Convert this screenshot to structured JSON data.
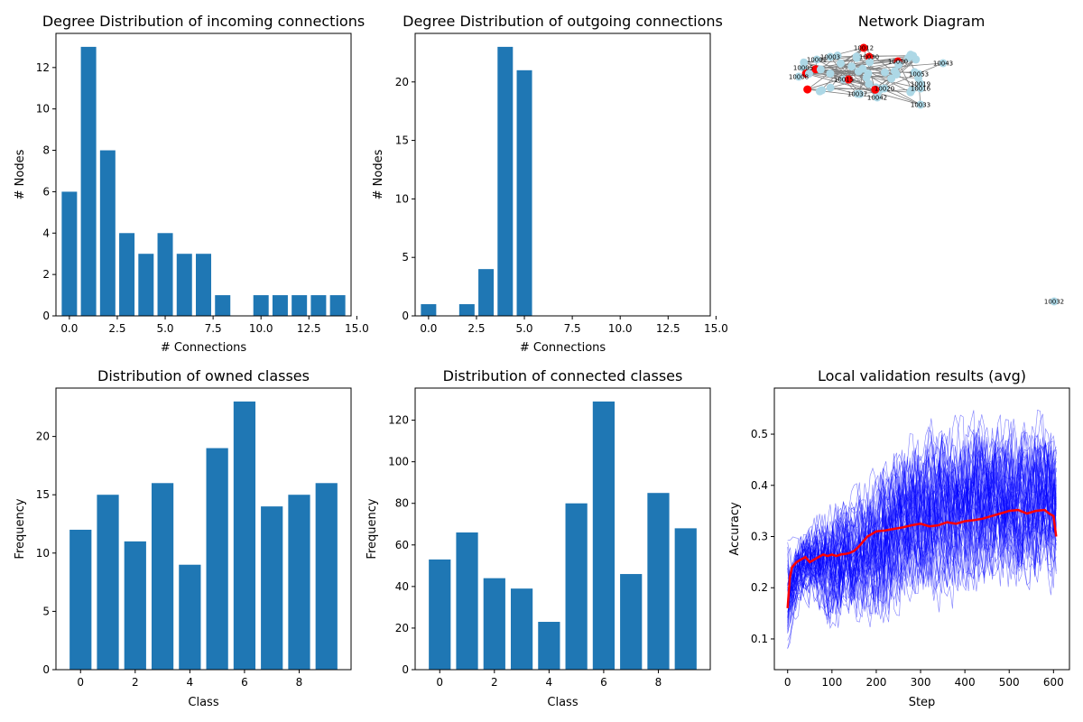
{
  "chart_data": [
    {
      "type": "bar",
      "title": "Degree Distribution of incoming connections",
      "xlabel": "# Connections",
      "ylabel": "# Nodes",
      "x": [
        0,
        1,
        2,
        3,
        4,
        5,
        6,
        7,
        8,
        9,
        10,
        11,
        12,
        13,
        14
      ],
      "values": [
        6,
        13,
        8,
        4,
        3,
        4,
        3,
        3,
        1,
        0,
        1,
        1,
        1,
        1,
        1
      ],
      "xlim": [
        -0.7,
        14.7
      ],
      "ylim": [
        0,
        13.65
      ],
      "xticks": [
        0.0,
        2.5,
        5.0,
        7.5,
        10.0,
        12.5,
        15.0
      ],
      "xtick_labels": [
        "0.0",
        "2.5",
        "5.0",
        "7.5",
        "10.0",
        "12.5",
        "15.0"
      ],
      "yticks": [
        0,
        2,
        4,
        6,
        8,
        10,
        12
      ],
      "ytick_labels": [
        "0",
        "2",
        "4",
        "6",
        "8",
        "10",
        "12"
      ],
      "color": "#1f77b4"
    },
    {
      "type": "bar",
      "title": "Degree Distribution of outgoing connections",
      "xlabel": "# Connections",
      "ylabel": "# Nodes",
      "x": [
        0,
        1,
        2,
        3,
        4,
        5,
        6,
        7,
        8,
        9,
        10,
        11,
        12,
        13,
        14
      ],
      "values": [
        1,
        0,
        1,
        4,
        23,
        21,
        0,
        0,
        0,
        0,
        0,
        0,
        0,
        0,
        0
      ],
      "xlim": [
        -0.7,
        14.7
      ],
      "ylim": [
        0,
        24.15
      ],
      "xticks": [
        0.0,
        2.5,
        5.0,
        7.5,
        10.0,
        12.5,
        15.0
      ],
      "xtick_labels": [
        "0.0",
        "2.5",
        "5.0",
        "7.5",
        "10.0",
        "12.5",
        "15.0"
      ],
      "yticks": [
        0,
        5,
        10,
        15,
        20
      ],
      "ytick_labels": [
        "0",
        "5",
        "10",
        "15",
        "20"
      ],
      "color": "#1f77b4"
    },
    {
      "type": "network",
      "title": "Network Diagram",
      "node_color": "#add8e6",
      "highlight_color": "#ff0000",
      "edge_color": "#808080",
      "node_labels": [
        "10012",
        "10003",
        "10000",
        "10043",
        "10030",
        "10053",
        "10019",
        "10016",
        "10020",
        "10037",
        "10042",
        "10033",
        "10032",
        "10001",
        "10005",
        "10008",
        "10015"
      ]
    },
    {
      "type": "bar",
      "title": "Distribution of owned classes",
      "xlabel": "Class",
      "ylabel": "Frequency",
      "x": [
        0,
        1,
        2,
        3,
        4,
        5,
        6,
        7,
        8,
        9
      ],
      "values": [
        12,
        15,
        11,
        16,
        9,
        19,
        23,
        14,
        15,
        16
      ],
      "xlim": [
        -0.9,
        9.9
      ],
      "ylim": [
        0,
        24.15
      ],
      "xticks": [
        0,
        2,
        4,
        6,
        8
      ],
      "xtick_labels": [
        "0",
        "2",
        "4",
        "6",
        "8"
      ],
      "yticks": [
        0,
        5,
        10,
        15,
        20
      ],
      "ytick_labels": [
        "0",
        "5",
        "10",
        "15",
        "20"
      ],
      "color": "#1f77b4"
    },
    {
      "type": "bar",
      "title": "Distribution of connected classes",
      "xlabel": "Class",
      "ylabel": "Frequency",
      "x": [
        0,
        1,
        2,
        3,
        4,
        5,
        6,
        7,
        8,
        9
      ],
      "values": [
        53,
        66,
        44,
        39,
        23,
        80,
        129,
        46,
        85,
        68
      ],
      "xlim": [
        -0.9,
        9.9
      ],
      "ylim": [
        0,
        135.45
      ],
      "xticks": [
        0,
        2,
        4,
        6,
        8
      ],
      "xtick_labels": [
        "0",
        "2",
        "4",
        "6",
        "8"
      ],
      "yticks": [
        0,
        20,
        40,
        60,
        80,
        100,
        120
      ],
      "ytick_labels": [
        "0",
        "20",
        "40",
        "60",
        "80",
        "100",
        "120"
      ],
      "color": "#1f77b4"
    },
    {
      "type": "line",
      "title": "Local validation results (avg)",
      "xlabel": "Step",
      "ylabel": "Accuracy",
      "xlim": [
        -30,
        636
      ],
      "ylim": [
        0.04,
        0.59
      ],
      "xticks": [
        0,
        100,
        200,
        300,
        400,
        500,
        600
      ],
      "xtick_labels": [
        "0",
        "100",
        "200",
        "300",
        "400",
        "500",
        "600"
      ],
      "yticks": [
        0.1,
        0.2,
        0.3,
        0.4,
        0.5
      ],
      "ytick_labels": [
        "0.1",
        "0.2",
        "0.3",
        "0.4",
        "0.5"
      ],
      "series": [
        {
          "color": "#ff0000",
          "x": [
            0,
            5,
            10,
            20,
            30,
            40,
            50,
            60,
            70,
            80,
            90,
            100,
            110,
            120,
            130,
            140,
            150,
            160,
            170,
            180,
            190,
            200,
            220,
            240,
            260,
            280,
            300,
            320,
            340,
            360,
            380,
            400,
            420,
            440,
            460,
            480,
            500,
            520,
            540,
            560,
            580,
            590,
            600,
            606
          ],
          "y": [
            0.16,
            0.22,
            0.24,
            0.25,
            0.255,
            0.26,
            0.25,
            0.255,
            0.26,
            0.265,
            0.262,
            0.265,
            0.262,
            0.265,
            0.266,
            0.268,
            0.272,
            0.28,
            0.29,
            0.3,
            0.305,
            0.31,
            0.312,
            0.315,
            0.318,
            0.322,
            0.325,
            0.32,
            0.322,
            0.328,
            0.325,
            0.33,
            0.332,
            0.335,
            0.34,
            0.345,
            0.35,
            0.352,
            0.345,
            0.35,
            0.352,
            0.345,
            0.34,
            0.3
          ]
        }
      ],
      "band": {
        "color": "#0000ff",
        "x": [
          0,
          20,
          50,
          100,
          150,
          200,
          250,
          300,
          350,
          400,
          450,
          500,
          550,
          600,
          606
        ],
        "low": [
          0.07,
          0.15,
          0.16,
          0.1,
          0.12,
          0.1,
          0.13,
          0.15,
          0.16,
          0.17,
          0.18,
          0.17,
          0.18,
          0.18,
          0.19
        ],
        "high": [
          0.28,
          0.31,
          0.34,
          0.38,
          0.4,
          0.45,
          0.5,
          0.52,
          0.55,
          0.54,
          0.55,
          0.54,
          0.55,
          0.55,
          0.5
        ]
      }
    }
  ]
}
